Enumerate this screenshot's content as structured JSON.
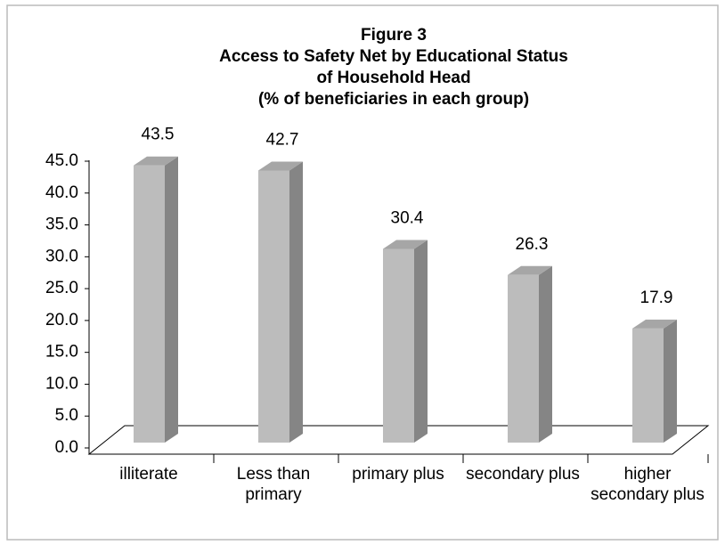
{
  "chart_data": {
    "type": "bar3d",
    "title": "Figure 3",
    "subtitle": [
      "Access to Safety Net by Educational Status",
      "of Household Head",
      "(% of beneficiaries in each group)"
    ],
    "categories": [
      "illiterate",
      "Less than primary",
      "primary plus",
      "secondary plus",
      "higher secondary plus"
    ],
    "values": [
      43.5,
      42.7,
      30.4,
      26.3,
      17.9
    ],
    "colors": {
      "front": "#bcbcbc",
      "side": "#858585",
      "top": "#a6a6a6"
    },
    "ylim": [
      0,
      45
    ],
    "yticks": [
      {
        "value": 0,
        "label": "0.0"
      },
      {
        "value": 5,
        "label": "5.0"
      },
      {
        "value": 10,
        "label": "10.0"
      },
      {
        "value": 15,
        "label": "15.0"
      },
      {
        "value": 20,
        "label": "20.0"
      },
      {
        "value": 25,
        "label": "25.0"
      },
      {
        "value": 30,
        "label": "30.0"
      },
      {
        "value": 35,
        "label": "35.0"
      },
      {
        "value": 40,
        "label": "40.0"
      },
      {
        "value": 45,
        "label": "45.0"
      }
    ],
    "grid": false
  }
}
